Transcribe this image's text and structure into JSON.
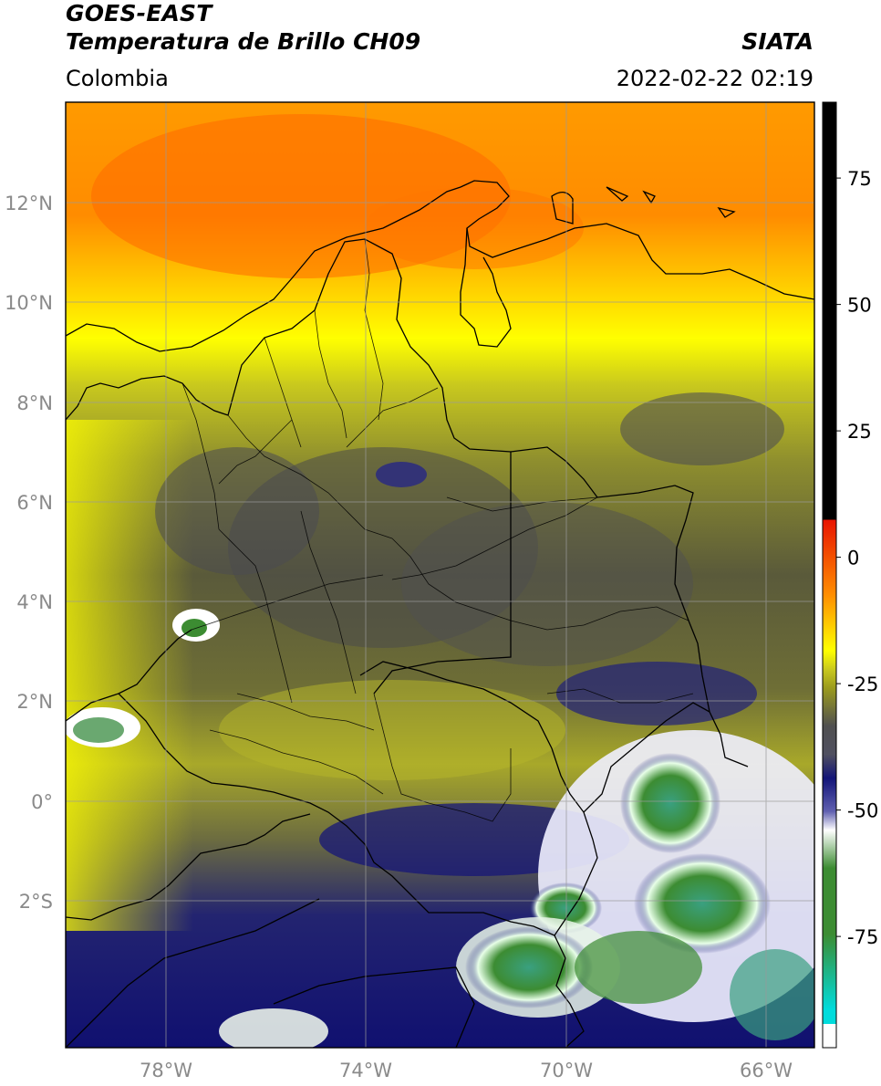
{
  "header": {
    "satellite": "GOES-EAST",
    "product": "Temperatura de Brillo CH09",
    "region": "Colombia",
    "agency": "SIATA",
    "datetime": "2022-02-22 02:19"
  },
  "lat_labels": [
    "12°N",
    "10°N",
    "8°N",
    "6°N",
    "4°N",
    "2°N",
    "0°",
    "2°S"
  ],
  "lon_labels": [
    "78°W",
    "74°W",
    "70°W",
    "66°W"
  ],
  "colorbar": {
    "ticks": [
      "75",
      "50",
      "25",
      "0",
      "-25",
      "-50",
      "-75"
    ],
    "tick_values": [
      75,
      50,
      25,
      0,
      -25,
      -50,
      -75
    ],
    "range": [
      -97,
      90
    ],
    "colors": {
      "warm_black": "#000000",
      "red": "#e81400",
      "orange": "#ff8c00",
      "yellow": "#ffff00",
      "olive": "#9a9a1e",
      "gray": "#505050",
      "navy": "#121478",
      "white": "#ffffff",
      "green": "#3c8c32",
      "cyan": "#00dcdc"
    }
  },
  "map": {
    "grid": true,
    "lon_range": [
      -80,
      -65
    ],
    "lat_range": [
      -5,
      14
    ]
  }
}
